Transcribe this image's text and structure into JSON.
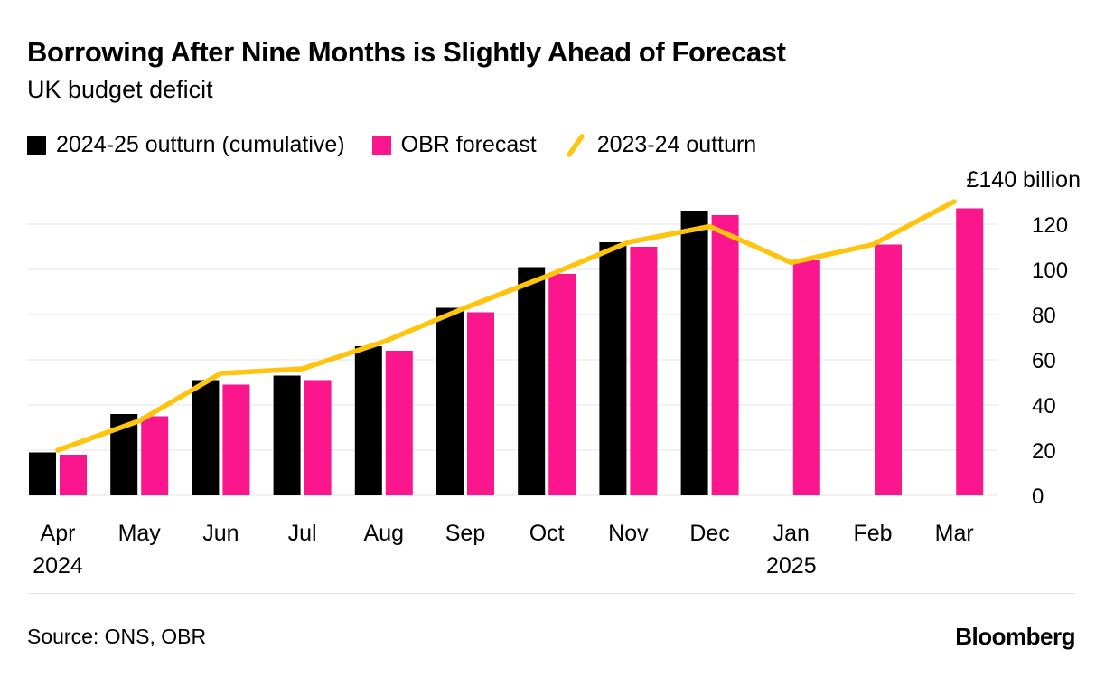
{
  "header": {
    "title": "Borrowing After Nine Months is Slightly Ahead of Forecast",
    "subtitle": "UK budget deficit"
  },
  "footer": {
    "source": "Source: ONS, OBR",
    "brand": "Bloomberg"
  },
  "chart_data": {
    "type": "bar",
    "title": "Borrowing After Nine Months is Slightly Ahead of Forecast",
    "subtitle": "UK budget deficit",
    "categories": [
      "Apr",
      "May",
      "Jun",
      "Jul",
      "Aug",
      "Sep",
      "Oct",
      "Nov",
      "Dec",
      "Jan",
      "Feb",
      "Mar"
    ],
    "year_labels": {
      "0": "2024",
      "9": "2025"
    },
    "series": [
      {
        "name": "2024-25 outturn (cumulative)",
        "type": "bar",
        "color": "#000000",
        "values": [
          19,
          36,
          51,
          53,
          66,
          83,
          101,
          112,
          126,
          null,
          null,
          null
        ]
      },
      {
        "name": "OBR forecast",
        "type": "bar",
        "color": "#fb168e",
        "values": [
          18,
          35,
          49,
          51,
          64,
          81,
          98,
          110,
          124,
          104,
          111,
          127
        ]
      },
      {
        "name": "2023-24 outturn",
        "type": "line",
        "color": "#ffc40e",
        "values": [
          20,
          33,
          54,
          56,
          68,
          83,
          97,
          112,
          119,
          103,
          111,
          130
        ]
      }
    ],
    "ylim": [
      0,
      140
    ],
    "yticks": [
      {
        "value": 0,
        "label": "0"
      },
      {
        "value": 20,
        "label": "20"
      },
      {
        "value": 40,
        "label": "40"
      },
      {
        "value": 60,
        "label": "60"
      },
      {
        "value": 80,
        "label": "80"
      },
      {
        "value": 100,
        "label": "100"
      },
      {
        "value": 120,
        "label": "120"
      },
      {
        "value": 140,
        "label": "£140 billion",
        "is_unit_label": true
      }
    ],
    "grid_color": "#e6e6e6",
    "legend_position": "top",
    "grid": "horizontal"
  }
}
